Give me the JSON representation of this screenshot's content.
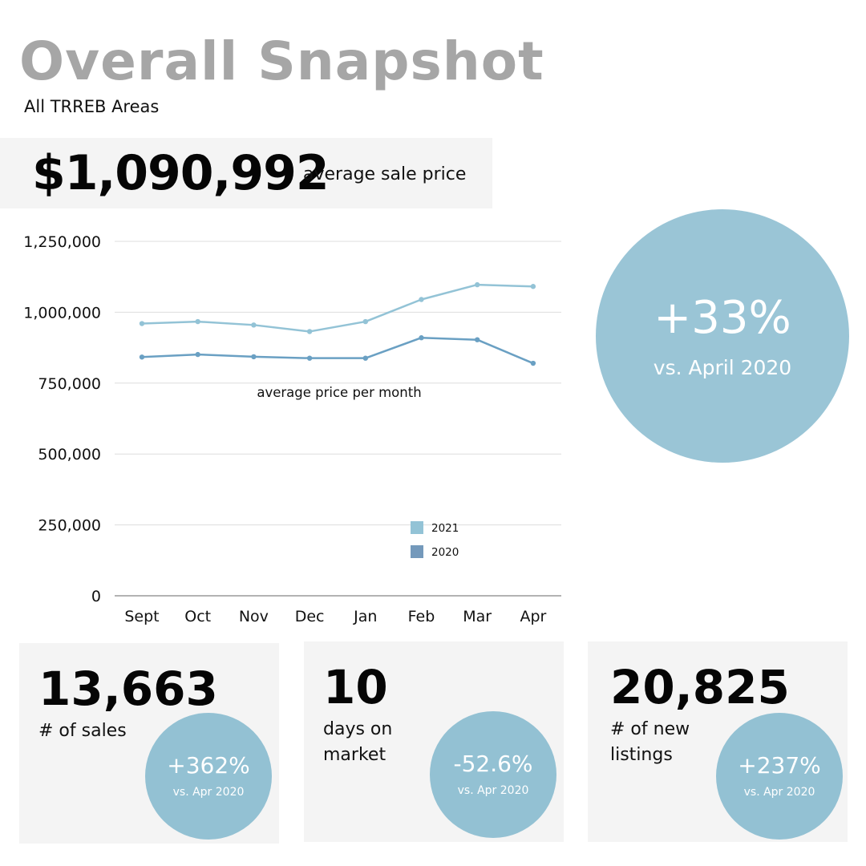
{
  "header": {
    "title": "Overall Snapshot",
    "subtitle": "All TRREB Areas"
  },
  "headline": {
    "value": "$1,090,992",
    "label": "average sale price"
  },
  "highlight": {
    "percent": "+33%",
    "comparison": "vs. April 2020",
    "color": "#9ac5d6"
  },
  "chart_data": {
    "type": "line",
    "title": "average price per month",
    "categories": [
      "Sept",
      "Oct",
      "Nov",
      "Dec",
      "Jan",
      "Feb",
      "Mar",
      "Apr"
    ],
    "series": [
      {
        "name": "2021",
        "color": "#93c3d6",
        "values": [
          960000,
          967000,
          955000,
          932000,
          967000,
          1045000,
          1097000,
          1090992
        ]
      },
      {
        "name": "2020",
        "color": "#6aa0c3",
        "values": [
          842000,
          851000,
          843000,
          838000,
          838000,
          910000,
          903000,
          820000
        ]
      }
    ],
    "ylim": [
      0,
      1250000
    ],
    "yticks": [
      0,
      250000,
      500000,
      750000,
      1000000,
      1250000
    ],
    "ytick_labels": [
      "0",
      "250,000",
      "500,000",
      "750,000",
      "1,000,000",
      "1,250,000"
    ],
    "xlabel": "",
    "ylabel": "",
    "grid": true,
    "legend": "center-bottom"
  },
  "stats": [
    {
      "value": "13,663",
      "label": "# of sales",
      "change": "+362%",
      "comparison": "vs. Apr 2020"
    },
    {
      "value": "10",
      "label": "days on market",
      "change": "-52.6%",
      "comparison": "vs. Apr 2020"
    },
    {
      "value": "20,825",
      "label": "# of new listings",
      "change": "+237%",
      "comparison": "vs. Apr 2020"
    }
  ]
}
